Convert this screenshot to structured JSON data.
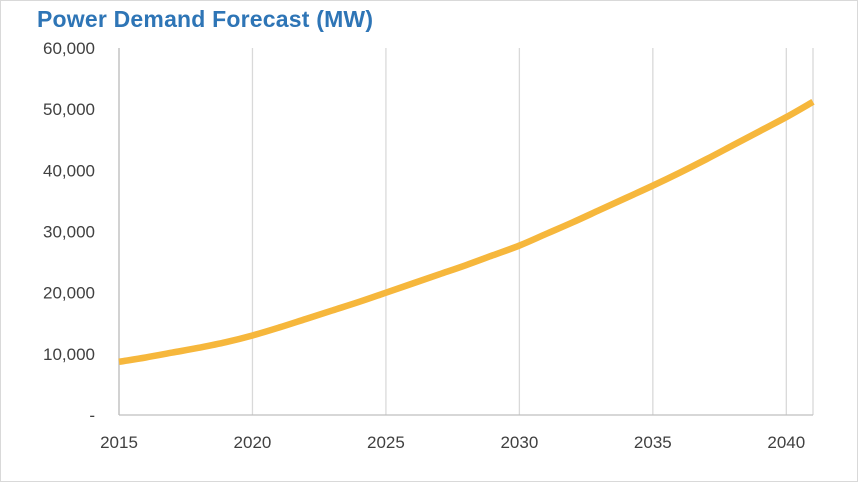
{
  "chart_data": {
    "type": "line",
    "title": "Power Demand Forecast (MW)",
    "xlabel": "",
    "ylabel": "",
    "x_ticks": [
      "2015",
      "2020",
      "2025",
      "2030",
      "2035",
      "2040"
    ],
    "y_ticks": [
      "-",
      "10,000",
      "20,000",
      "30,000",
      "40,000",
      "50,000",
      "60,000"
    ],
    "xlim": [
      2015,
      2041
    ],
    "ylim": [
      0,
      60000
    ],
    "grid": "vertical",
    "series": [
      {
        "color": "#f6b73c",
        "x": [
          2015,
          2016,
          2017,
          2018,
          2019,
          2020,
          2021,
          2022,
          2023,
          2024,
          2025,
          2026,
          2027,
          2028,
          2029,
          2030,
          2031,
          2032,
          2033,
          2034,
          2035,
          2036,
          2037,
          2038,
          2039,
          2040,
          2041
        ],
        "values": [
          8700,
          9400,
          10200,
          11000,
          11900,
          13000,
          14300,
          15700,
          17100,
          18500,
          20000,
          21500,
          23000,
          24500,
          26100,
          27700,
          29600,
          31500,
          33500,
          35500,
          37500,
          39600,
          41800,
          44100,
          46400,
          48700,
          51200
        ]
      }
    ]
  }
}
